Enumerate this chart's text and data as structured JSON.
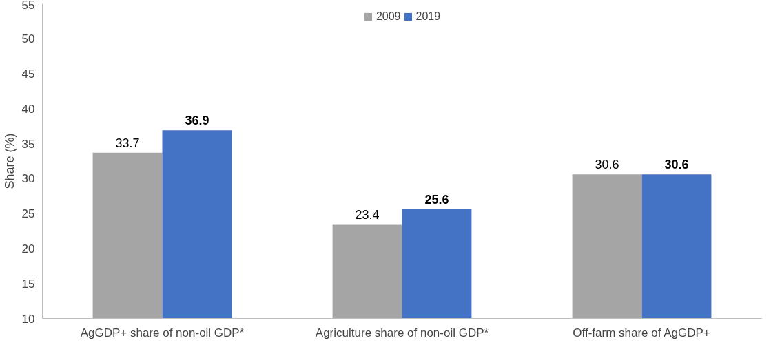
{
  "chart_data": {
    "type": "bar",
    "ylabel": "Share (%)",
    "categories": [
      "AgGDP+ share of non-oil GDP*",
      "Agriculture share of non-oil GDP*",
      "Off-farm share of AgGDP+"
    ],
    "series": [
      {
        "name": "2009",
        "color": "#a5a5a5",
        "values": [
          33.7,
          23.4,
          30.6
        ]
      },
      {
        "name": "2019",
        "color": "#4472c4",
        "values": [
          36.9,
          25.6,
          30.6
        ]
      }
    ],
    "ylim": [
      10,
      55
    ],
    "yticks": [
      10,
      15,
      20,
      25,
      30,
      35,
      40,
      45,
      50,
      55
    ],
    "grid": false,
    "legend": "top",
    "data_labels": true
  }
}
